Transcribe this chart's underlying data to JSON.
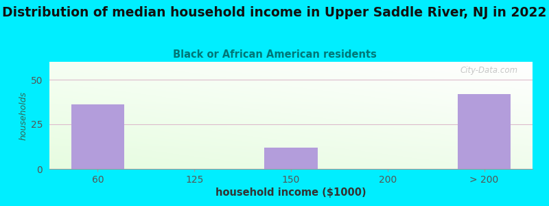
{
  "title": "Distribution of median household income in Upper Saddle River, NJ in 2022",
  "subtitle": "Black or African American residents",
  "xlabel": "household income ($1000)",
  "ylabel": "households",
  "categories": [
    "60",
    "125",
    "150",
    "200",
    "> 200"
  ],
  "values": [
    36,
    0,
    12,
    0,
    42
  ],
  "bar_color": "#b39ddb",
  "background_outer": "#00eeff",
  "ylim": [
    0,
    60
  ],
  "yticks": [
    0,
    25,
    50
  ],
  "title_fontsize": 13.5,
  "subtitle_fontsize": 10.5,
  "xlabel_fontsize": 10.5,
  "ylabel_fontsize": 9,
  "bar_width": 0.55,
  "watermark": "City-Data.com",
  "grid_color": "#ddbbcc",
  "title_color": "#111111",
  "subtitle_color": "#007777",
  "ylabel_color": "#336655",
  "xlabel_color": "#333333",
  "tick_color": "#555555"
}
